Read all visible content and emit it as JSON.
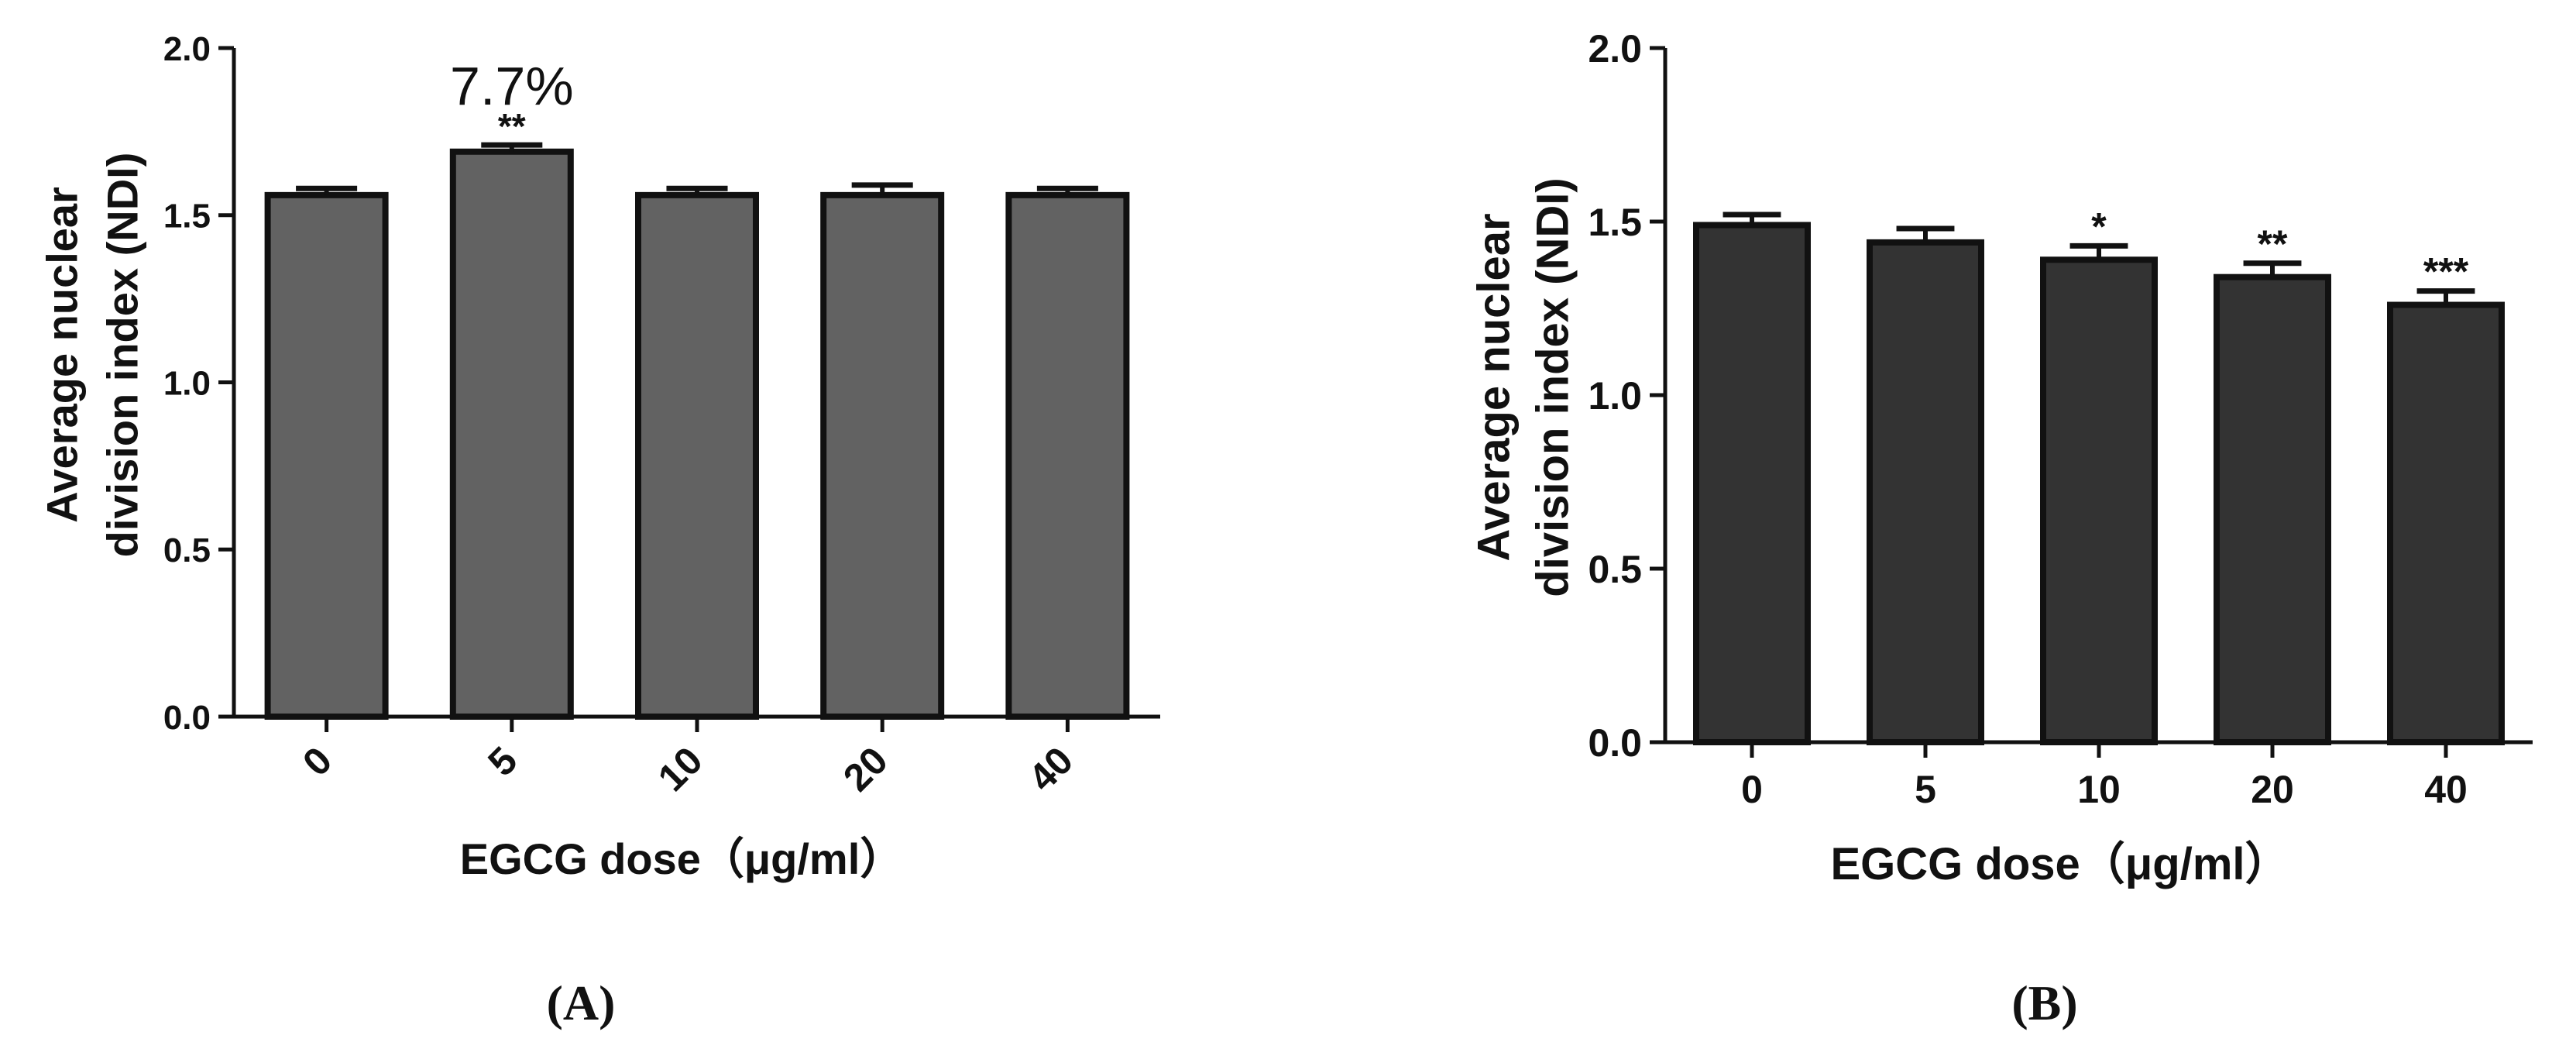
{
  "chart_data": [
    {
      "type": "bar",
      "panel_label": "(A)",
      "categories": [
        "0",
        "5",
        "10",
        "20",
        "40"
      ],
      "values": [
        1.56,
        1.69,
        1.56,
        1.56,
        1.56
      ],
      "errors": [
        0.02,
        0.02,
        0.02,
        0.03,
        0.02
      ],
      "significance": [
        "",
        "**",
        "",
        "",
        ""
      ],
      "annotation": "7.7%",
      "xlabel": "EGCG dose（μg/ml）",
      "ylabel_lines": [
        "Average nuclear",
        "division index (NDI)"
      ],
      "ylim": [
        0.0,
        2.0
      ],
      "yticks": [
        "0.0",
        "0.5",
        "1.0",
        "1.5",
        "2.0"
      ],
      "bar_color": "#626262",
      "xtick_rotation": "rotated"
    },
    {
      "type": "bar",
      "panel_label": "(B)",
      "categories": [
        "0",
        "5",
        "10",
        "20",
        "40"
      ],
      "values": [
        1.49,
        1.44,
        1.39,
        1.34,
        1.26
      ],
      "errors": [
        0.03,
        0.04,
        0.04,
        0.04,
        0.04
      ],
      "significance": [
        "",
        "",
        "*",
        "**",
        "***"
      ],
      "xlabel": "EGCG dose（μg/ml）",
      "ylabel_lines": [
        "Average nuclear",
        "division index (NDI)"
      ],
      "ylim": [
        0.0,
        2.0
      ],
      "yticks": [
        "0.0",
        "0.5",
        "1.0",
        "1.5",
        "2.0"
      ],
      "bar_color": "#333333",
      "xtick_rotation": "horizontal"
    }
  ]
}
